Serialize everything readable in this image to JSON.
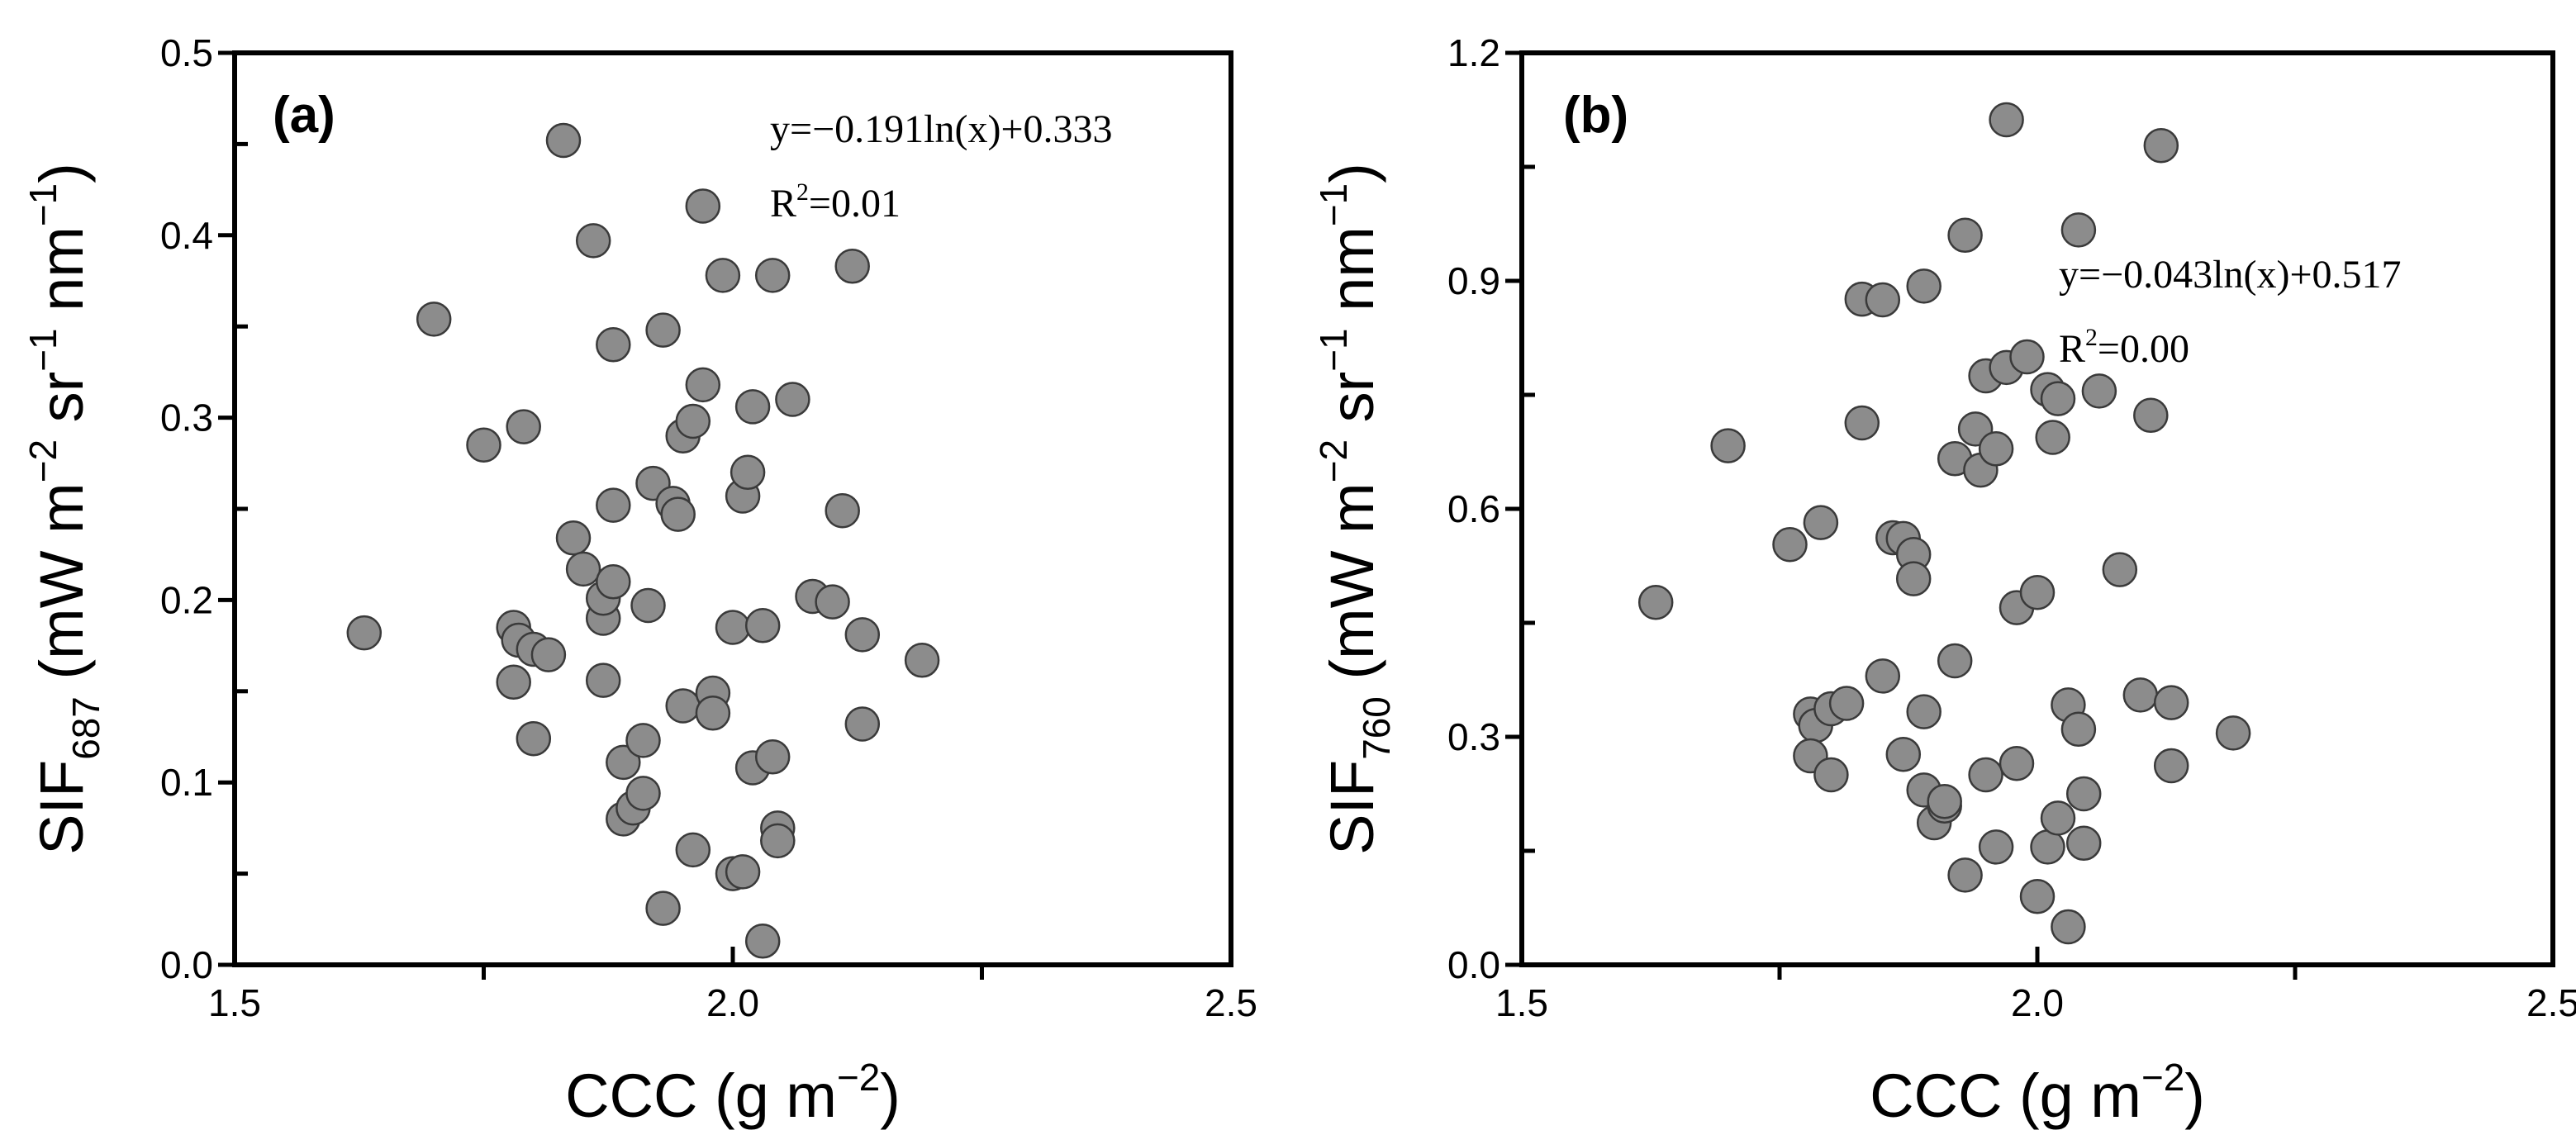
{
  "chart_data": [
    {
      "type": "scatter",
      "panel_label": "(a)",
      "xlabel": "CCC (g m−2)",
      "xlabel_base": "CCC (g m",
      "xlabel_exp": "−2",
      "xlabel_close": ")",
      "ylabel_main": "SIF",
      "ylabel_sub": "687",
      "ylabel_rest": " (mW m",
      "ylabel_exp1": "−2",
      "ylabel_mid1": " sr",
      "ylabel_exp2": "−1",
      "ylabel_mid2": " nm",
      "ylabel_exp3": "−1",
      "ylabel_close": ")",
      "xlim": [
        1.5,
        2.5
      ],
      "ylim": [
        0.0,
        0.5
      ],
      "xticks": [
        1.5,
        2.0,
        2.5
      ],
      "xtick_labels": [
        "1.5",
        "2.0",
        "2.5"
      ],
      "xminor": [
        1.75,
        2.25
      ],
      "yticks": [
        0.0,
        0.1,
        0.2,
        0.3,
        0.4,
        0.5
      ],
      "ytick_labels": [
        "0.0",
        "0.1",
        "0.2",
        "0.3",
        "0.4",
        "0.5"
      ],
      "yminor": [
        0.05,
        0.15,
        0.25,
        0.35,
        0.45
      ],
      "equation": "y=−0.191ln(x)+0.333",
      "r2_base": "R",
      "r2_exp": "2",
      "r2_value": "=0.01",
      "marker_color": "#8c8c8c",
      "points": [
        [
          1.63,
          0.182
        ],
        [
          1.7,
          0.354
        ],
        [
          1.75,
          0.285
        ],
        [
          1.79,
          0.295
        ],
        [
          1.78,
          0.185
        ],
        [
          1.785,
          0.178
        ],
        [
          1.8,
          0.173
        ],
        [
          1.815,
          0.17
        ],
        [
          1.78,
          0.155
        ],
        [
          1.8,
          0.124
        ],
        [
          1.83,
          0.452
        ],
        [
          1.84,
          0.234
        ],
        [
          1.85,
          0.217
        ],
        [
          1.86,
          0.397
        ],
        [
          1.87,
          0.19
        ],
        [
          1.87,
          0.201
        ],
        [
          1.88,
          0.21
        ],
        [
          1.87,
          0.156
        ],
        [
          1.88,
          0.34
        ],
        [
          1.88,
          0.252
        ],
        [
          1.89,
          0.111
        ],
        [
          1.89,
          0.08
        ],
        [
          1.9,
          0.086
        ],
        [
          1.91,
          0.094
        ],
        [
          1.91,
          0.123
        ],
        [
          1.915,
          0.197
        ],
        [
          1.92,
          0.264
        ],
        [
          1.93,
          0.348
        ],
        [
          1.93,
          0.031
        ],
        [
          1.94,
          0.253
        ],
        [
          1.945,
          0.247
        ],
        [
          1.95,
          0.29
        ],
        [
          1.95,
          0.142
        ],
        [
          1.96,
          0.298
        ],
        [
          1.96,
          0.063
        ],
        [
          1.97,
          0.416
        ],
        [
          1.97,
          0.318
        ],
        [
          1.98,
          0.149
        ],
        [
          1.98,
          0.138
        ],
        [
          1.99,
          0.378
        ],
        [
          2.0,
          0.185
        ],
        [
          2.0,
          0.05
        ],
        [
          2.01,
          0.257
        ],
        [
          2.015,
          0.27
        ],
        [
          2.02,
          0.306
        ],
        [
          2.01,
          0.051
        ],
        [
          2.02,
          0.108
        ],
        [
          2.03,
          0.186
        ],
        [
          2.04,
          0.114
        ],
        [
          2.04,
          0.378
        ],
        [
          2.045,
          0.075
        ],
        [
          2.045,
          0.068
        ],
        [
          2.03,
          0.013
        ],
        [
          2.06,
          0.31
        ],
        [
          2.08,
          0.202
        ],
        [
          2.1,
          0.199
        ],
        [
          2.11,
          0.249
        ],
        [
          2.12,
          0.383
        ],
        [
          2.13,
          0.181
        ],
        [
          2.13,
          0.132
        ],
        [
          2.19,
          0.167
        ]
      ]
    },
    {
      "type": "scatter",
      "panel_label": "(b)",
      "xlabel": "CCC (g m−2)",
      "xlabel_base": "CCC (g m",
      "xlabel_exp": "−2",
      "xlabel_close": ")",
      "ylabel_main": "SIF",
      "ylabel_sub": "760",
      "ylabel_rest": " (mW m",
      "ylabel_exp1": "−2",
      "ylabel_mid1": " sr",
      "ylabel_exp2": "−1",
      "ylabel_mid2": " nm",
      "ylabel_exp3": "−1",
      "ylabel_close": ")",
      "xlim": [
        1.5,
        2.5
      ],
      "ylim": [
        0.0,
        1.2
      ],
      "xticks": [
        1.5,
        2.0,
        2.5
      ],
      "xtick_labels": [
        "1.5",
        "2.0",
        "2.5"
      ],
      "xminor": [
        1.75,
        2.25
      ],
      "yticks": [
        0.0,
        0.3,
        0.6,
        0.9,
        1.2
      ],
      "ytick_labels": [
        "0.0",
        "0.3",
        "0.6",
        "0.9",
        "1.2"
      ],
      "yminor": [
        0.15,
        0.45,
        0.75,
        1.05
      ],
      "equation": "y=−0.043ln(x)+0.517",
      "r2_base": "R",
      "r2_exp": "2",
      "r2_value": "=0.00",
      "marker_color": "#8c8c8c",
      "points": [
        [
          1.63,
          0.477
        ],
        [
          1.7,
          0.683
        ],
        [
          1.76,
          0.553
        ],
        [
          1.79,
          0.582
        ],
        [
          1.78,
          0.33
        ],
        [
          1.785,
          0.315
        ],
        [
          1.8,
          0.337
        ],
        [
          1.815,
          0.344
        ],
        [
          1.78,
          0.275
        ],
        [
          1.8,
          0.25
        ],
        [
          1.83,
          0.876
        ],
        [
          1.83,
          0.713
        ],
        [
          1.85,
          0.875
        ],
        [
          1.85,
          0.38
        ],
        [
          1.86,
          0.562
        ],
        [
          1.87,
          0.561
        ],
        [
          1.88,
          0.54
        ],
        [
          1.88,
          0.508
        ],
        [
          1.87,
          0.277
        ],
        [
          1.89,
          0.893
        ],
        [
          1.89,
          0.333
        ],
        [
          1.89,
          0.23
        ],
        [
          1.9,
          0.187
        ],
        [
          1.91,
          0.209
        ],
        [
          1.91,
          0.215
        ],
        [
          1.92,
          0.666
        ],
        [
          1.92,
          0.4
        ],
        [
          1.93,
          0.96
        ],
        [
          1.93,
          0.118
        ],
        [
          1.94,
          0.705
        ],
        [
          1.945,
          0.651
        ],
        [
          1.95,
          0.775
        ],
        [
          1.95,
          0.25
        ],
        [
          1.96,
          0.679
        ],
        [
          1.96,
          0.155
        ],
        [
          1.97,
          1.112
        ],
        [
          1.97,
          0.786
        ],
        [
          1.98,
          0.265
        ],
        [
          1.98,
          0.47
        ],
        [
          1.99,
          0.8
        ],
        [
          2.0,
          0.49
        ],
        [
          2.0,
          0.09
        ],
        [
          2.01,
          0.757
        ],
        [
          2.015,
          0.694
        ],
        [
          2.02,
          0.745
        ],
        [
          2.01,
          0.155
        ],
        [
          2.02,
          0.193
        ],
        [
          2.03,
          0.342
        ],
        [
          2.04,
          0.31
        ],
        [
          2.04,
          0.967
        ],
        [
          2.045,
          0.225
        ],
        [
          2.045,
          0.16
        ],
        [
          2.03,
          0.05
        ],
        [
          2.06,
          0.755
        ],
        [
          2.08,
          0.52
        ],
        [
          2.1,
          0.355
        ],
        [
          2.11,
          0.723
        ],
        [
          2.12,
          1.078
        ],
        [
          2.13,
          0.345
        ],
        [
          2.13,
          0.262
        ],
        [
          2.19,
          0.305
        ]
      ]
    }
  ]
}
